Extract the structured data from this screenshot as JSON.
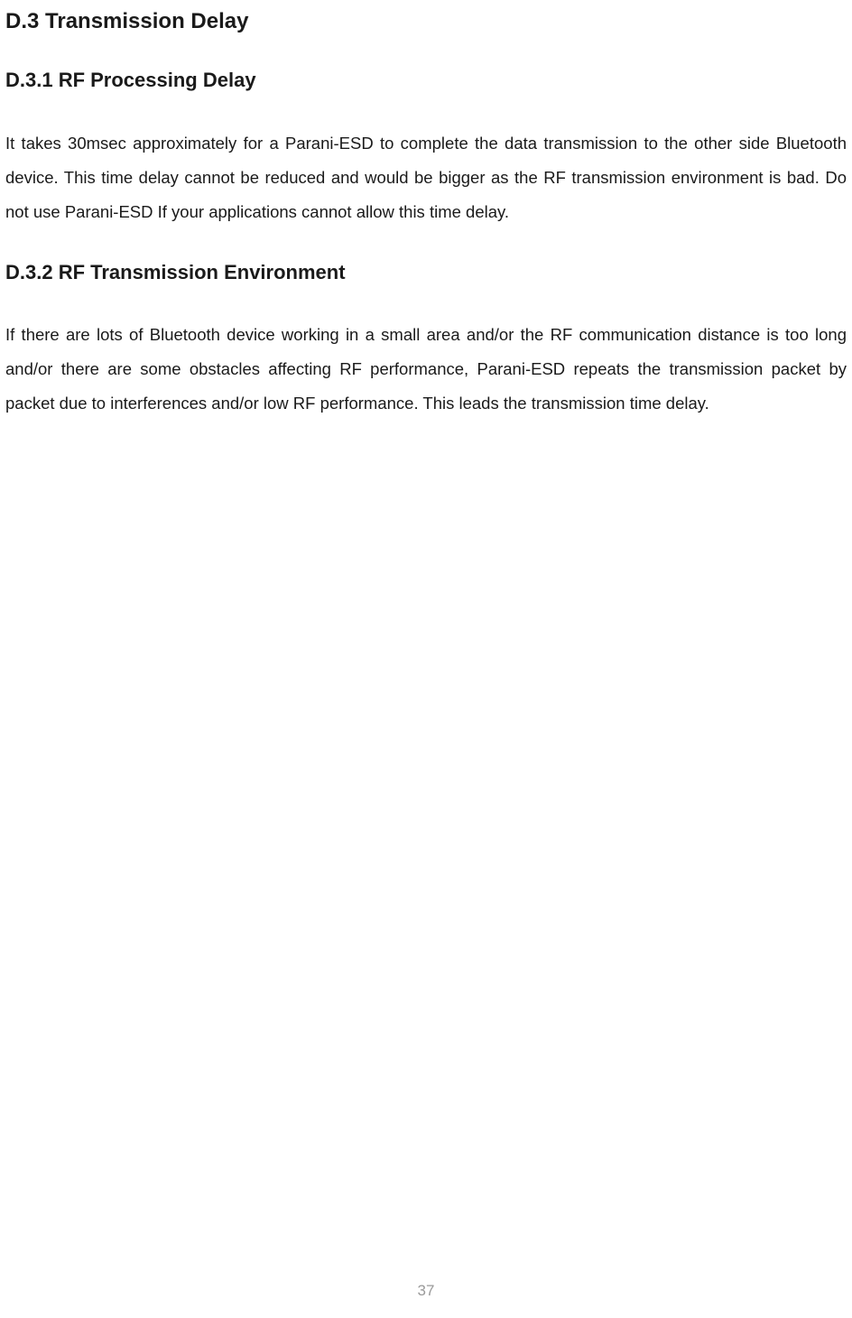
{
  "section": {
    "heading": "D.3 Transmission Delay",
    "sub1": {
      "heading": "D.3.1 RF Processing Delay",
      "body": "It takes 30msec approximately for a Parani-ESD to complete the data transmission to the other side Bluetooth device. This time delay cannot be reduced and would be bigger as the RF transmission environment is bad. Do not use Parani-ESD If your applications cannot allow this time delay."
    },
    "sub2": {
      "heading": "D.3.2 RF Transmission Environment",
      "body": "If there are lots of Bluetooth device working in a small area and/or the RF communication distance is too long and/or there are some obstacles affecting RF performance, Parani-ESD repeats the transmission packet by packet due to interferences and/or low RF performance. This leads the transmission time delay."
    }
  },
  "page_number": "37",
  "colors": {
    "text": "#1a1a1a",
    "page_num": "#9a9a9a",
    "background": "#ffffff"
  },
  "typography": {
    "h1_fontsize": 24,
    "h2_fontsize": 22,
    "body_fontsize": 18.5,
    "body_lineheight": 2.05,
    "font_family": "Arial"
  }
}
